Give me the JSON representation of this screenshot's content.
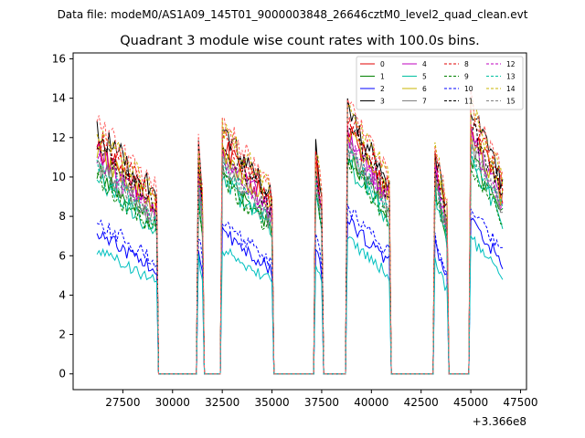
{
  "chart_data": {
    "type": "line",
    "suptitle": "Data file: modeM0/AS1A09_145T01_9000003848_26646cztM0_level2_quad_clean.evt",
    "title": "Quadrant 3 module wise count rates with 100.0s bins.",
    "xlabel": "",
    "ylabel": "",
    "x_offset_label": "+3.366e8",
    "xlim": [
      25000,
      47800
    ],
    "ylim": [
      -0.8,
      16.3
    ],
    "x_ticks": [
      27500,
      30000,
      32500,
      35000,
      37500,
      40000,
      42500,
      45000,
      47500
    ],
    "x_tick_labels": [
      "27500",
      "30000",
      "32500",
      "35000",
      "37500",
      "40000",
      "42500",
      "45000",
      "47500"
    ],
    "y_ticks": [
      0,
      2,
      4,
      6,
      8,
      10,
      12,
      14,
      16
    ],
    "y_tick_labels": [
      "0",
      "2",
      "4",
      "6",
      "8",
      "10",
      "12",
      "14",
      "16"
    ],
    "bin_seconds": 100,
    "x_start": 26200,
    "x_end": 46600,
    "segments": [
      {
        "start": 26200,
        "end": 29200
      },
      {
        "start": 31300,
        "end": 31500
      },
      {
        "start": 32500,
        "end": 35000
      },
      {
        "start": 37200,
        "end": 37500
      },
      {
        "start": 38800,
        "end": 40900
      },
      {
        "start": 43200,
        "end": 43800
      },
      {
        "start": 45000,
        "end": 46600
      }
    ],
    "legend_position": "top-right",
    "legend_columns": 4,
    "series": [
      {
        "name": "0",
        "color": "#e00000",
        "dash": "solid",
        "level": 9.8
      },
      {
        "name": "1",
        "color": "#008000",
        "dash": "solid",
        "level": 8.7
      },
      {
        "name": "2",
        "color": "#0000ff",
        "dash": "solid",
        "level": 6.1
      },
      {
        "name": "3",
        "color": "#000000",
        "dash": "solid",
        "level": 10.5
      },
      {
        "name": "4",
        "color": "#bf00bf",
        "dash": "solid",
        "level": 9.5
      },
      {
        "name": "5",
        "color": "#00bfa0",
        "dash": "solid",
        "level": 8.4
      },
      {
        "name": "6",
        "color": "#c8b400",
        "dash": "solid",
        "level": 9.6
      },
      {
        "name": "7",
        "color": "#808080",
        "dash": "solid",
        "level": 9.0
      },
      {
        "name": "8",
        "color": "#e00000",
        "dash": "dashed",
        "level": 10.2
      },
      {
        "name": "9",
        "color": "#008000",
        "dash": "dashed",
        "level": 8.4
      },
      {
        "name": "10",
        "color": "#0000ff",
        "dash": "dashed",
        "level": 6.6
      },
      {
        "name": "11",
        "color": "#000000",
        "dash": "dashed",
        "level": 9.9
      },
      {
        "name": "12",
        "color": "#bf00bf",
        "dash": "dashed",
        "level": 9.3
      },
      {
        "name": "13",
        "color": "#00bfa0",
        "dash": "dashed",
        "level": 8.9
      },
      {
        "name": "14",
        "color": "#c8b400",
        "dash": "dashed",
        "level": 10.6
      },
      {
        "name": "15",
        "color": "#808080",
        "dash": "dashed",
        "level": 9.1
      }
    ],
    "extra_series": [
      {
        "name": "",
        "color": "#00c0c0",
        "dash": "solid",
        "level": 5.4
      },
      {
        "name": "",
        "color": "#ff6060",
        "dash": "dashed",
        "level": 10.8
      }
    ]
  }
}
